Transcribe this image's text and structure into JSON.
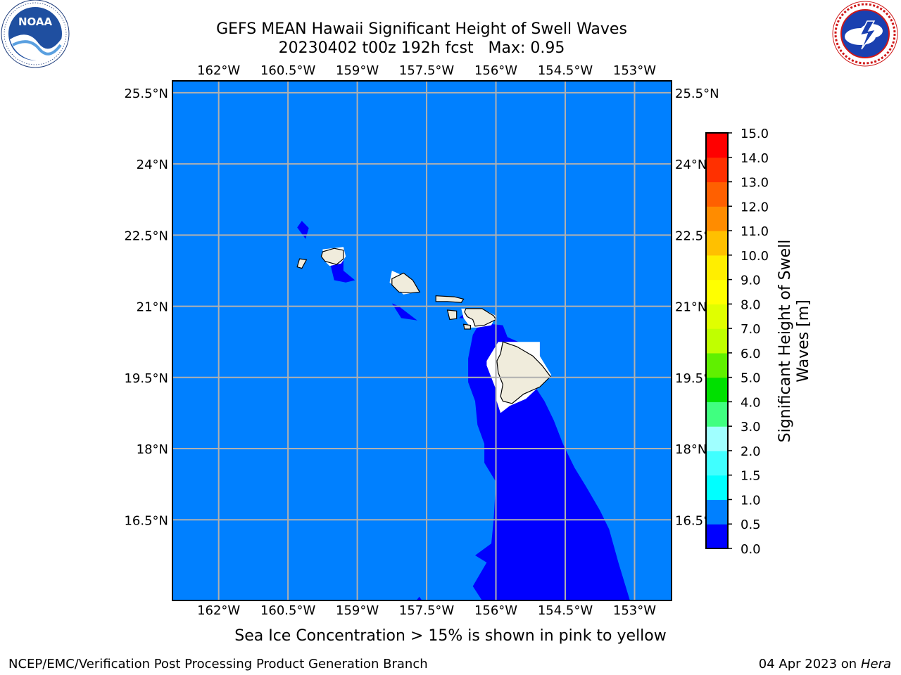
{
  "header": {
    "title_line1": "GEFS MEAN Hawaii Significant Height of Swell Waves",
    "title_line2": "20230402 t00z 192h fcst   Max: 0.95"
  },
  "logos": {
    "left": {
      "name": "NOAA",
      "text": "NOAA",
      "ring_text": "NATIONAL OCEANIC AND ATMOSPHERIC ADMINISTRATION · U.S. DEPARTMENT OF COMMERCE"
    },
    "right": {
      "name": "National Weather Service",
      "ring_text": "NATIONAL WEATHER SERVICE"
    }
  },
  "map": {
    "lon_range": [
      -163.0,
      -152.2
    ],
    "lat_range": [
      14.8,
      25.75
    ],
    "lon_ticks": [
      {
        "value": -162.0,
        "label": "162°W"
      },
      {
        "value": -160.5,
        "label": "160.5°W"
      },
      {
        "value": -159.0,
        "label": "159°W"
      },
      {
        "value": -157.5,
        "label": "157.5°W"
      },
      {
        "value": -156.0,
        "label": "156°W"
      },
      {
        "value": -154.5,
        "label": "154.5°W"
      },
      {
        "value": -153.0,
        "label": "153°W"
      }
    ],
    "lat_ticks": [
      {
        "value": 25.5,
        "label": "25.5°N"
      },
      {
        "value": 24.0,
        "label": "24°N"
      },
      {
        "value": 22.5,
        "label": "22.5°N"
      },
      {
        "value": 21.0,
        "label": "21°N"
      },
      {
        "value": 19.5,
        "label": "19.5°N"
      },
      {
        "value": 18.0,
        "label": "18°N"
      },
      {
        "value": 16.5,
        "label": "16.5°N"
      }
    ],
    "colors": {
      "ocean_fill": "#0080ff",
      "low_swell_fill": "#0000ff",
      "land": "#f0ecdc",
      "gridline": "#b0b0b0"
    },
    "footnote": "Sea Ice Concentration > 15% is shown in pink to yellow"
  },
  "colorbar": {
    "label": "Significant Height of Swell Waves [m]",
    "levels": [
      {
        "from": 0.0,
        "to": 0.5,
        "color": "#0000ff"
      },
      {
        "from": 0.5,
        "to": 1.0,
        "color": "#0080ff"
      },
      {
        "from": 1.0,
        "to": 1.5,
        "color": "#00ffff"
      },
      {
        "from": 1.5,
        "to": 2.0,
        "color": "#40ffff"
      },
      {
        "from": 2.0,
        "to": 3.0,
        "color": "#a0ffff"
      },
      {
        "from": 3.0,
        "to": 4.0,
        "color": "#40ff80"
      },
      {
        "from": 4.0,
        "to": 5.0,
        "color": "#00e000"
      },
      {
        "from": 5.0,
        "to": 6.0,
        "color": "#60f000"
      },
      {
        "from": 6.0,
        "to": 7.0,
        "color": "#c0ff00"
      },
      {
        "from": 7.0,
        "to": 8.0,
        "color": "#e0ff00"
      },
      {
        "from": 8.0,
        "to": 9.0,
        "color": "#ffff00"
      },
      {
        "from": 9.0,
        "to": 10.0,
        "color": "#ffee00"
      },
      {
        "from": 10.0,
        "to": 11.0,
        "color": "#ffc000"
      },
      {
        "from": 11.0,
        "to": 12.0,
        "color": "#ff8c00"
      },
      {
        "from": 12.0,
        "to": 13.0,
        "color": "#ff6000"
      },
      {
        "from": 13.0,
        "to": 14.0,
        "color": "#ff3000"
      },
      {
        "from": 14.0,
        "to": 15.0,
        "color": "#ff0000"
      }
    ],
    "tick_labels": [
      "0.0",
      "0.5",
      "1.0",
      "1.5",
      "2.0",
      "3.0",
      "4.0",
      "5.0",
      "6.0",
      "7.0",
      "8.0",
      "9.0",
      "10.0",
      "11.0",
      "12.0",
      "13.0",
      "14.0",
      "15.0"
    ]
  },
  "footer": {
    "left": "NCEP/EMC/Verification Post Processing Product Generation Branch",
    "right_date": "04 Apr 2023 on ",
    "right_machine": "Hera"
  }
}
